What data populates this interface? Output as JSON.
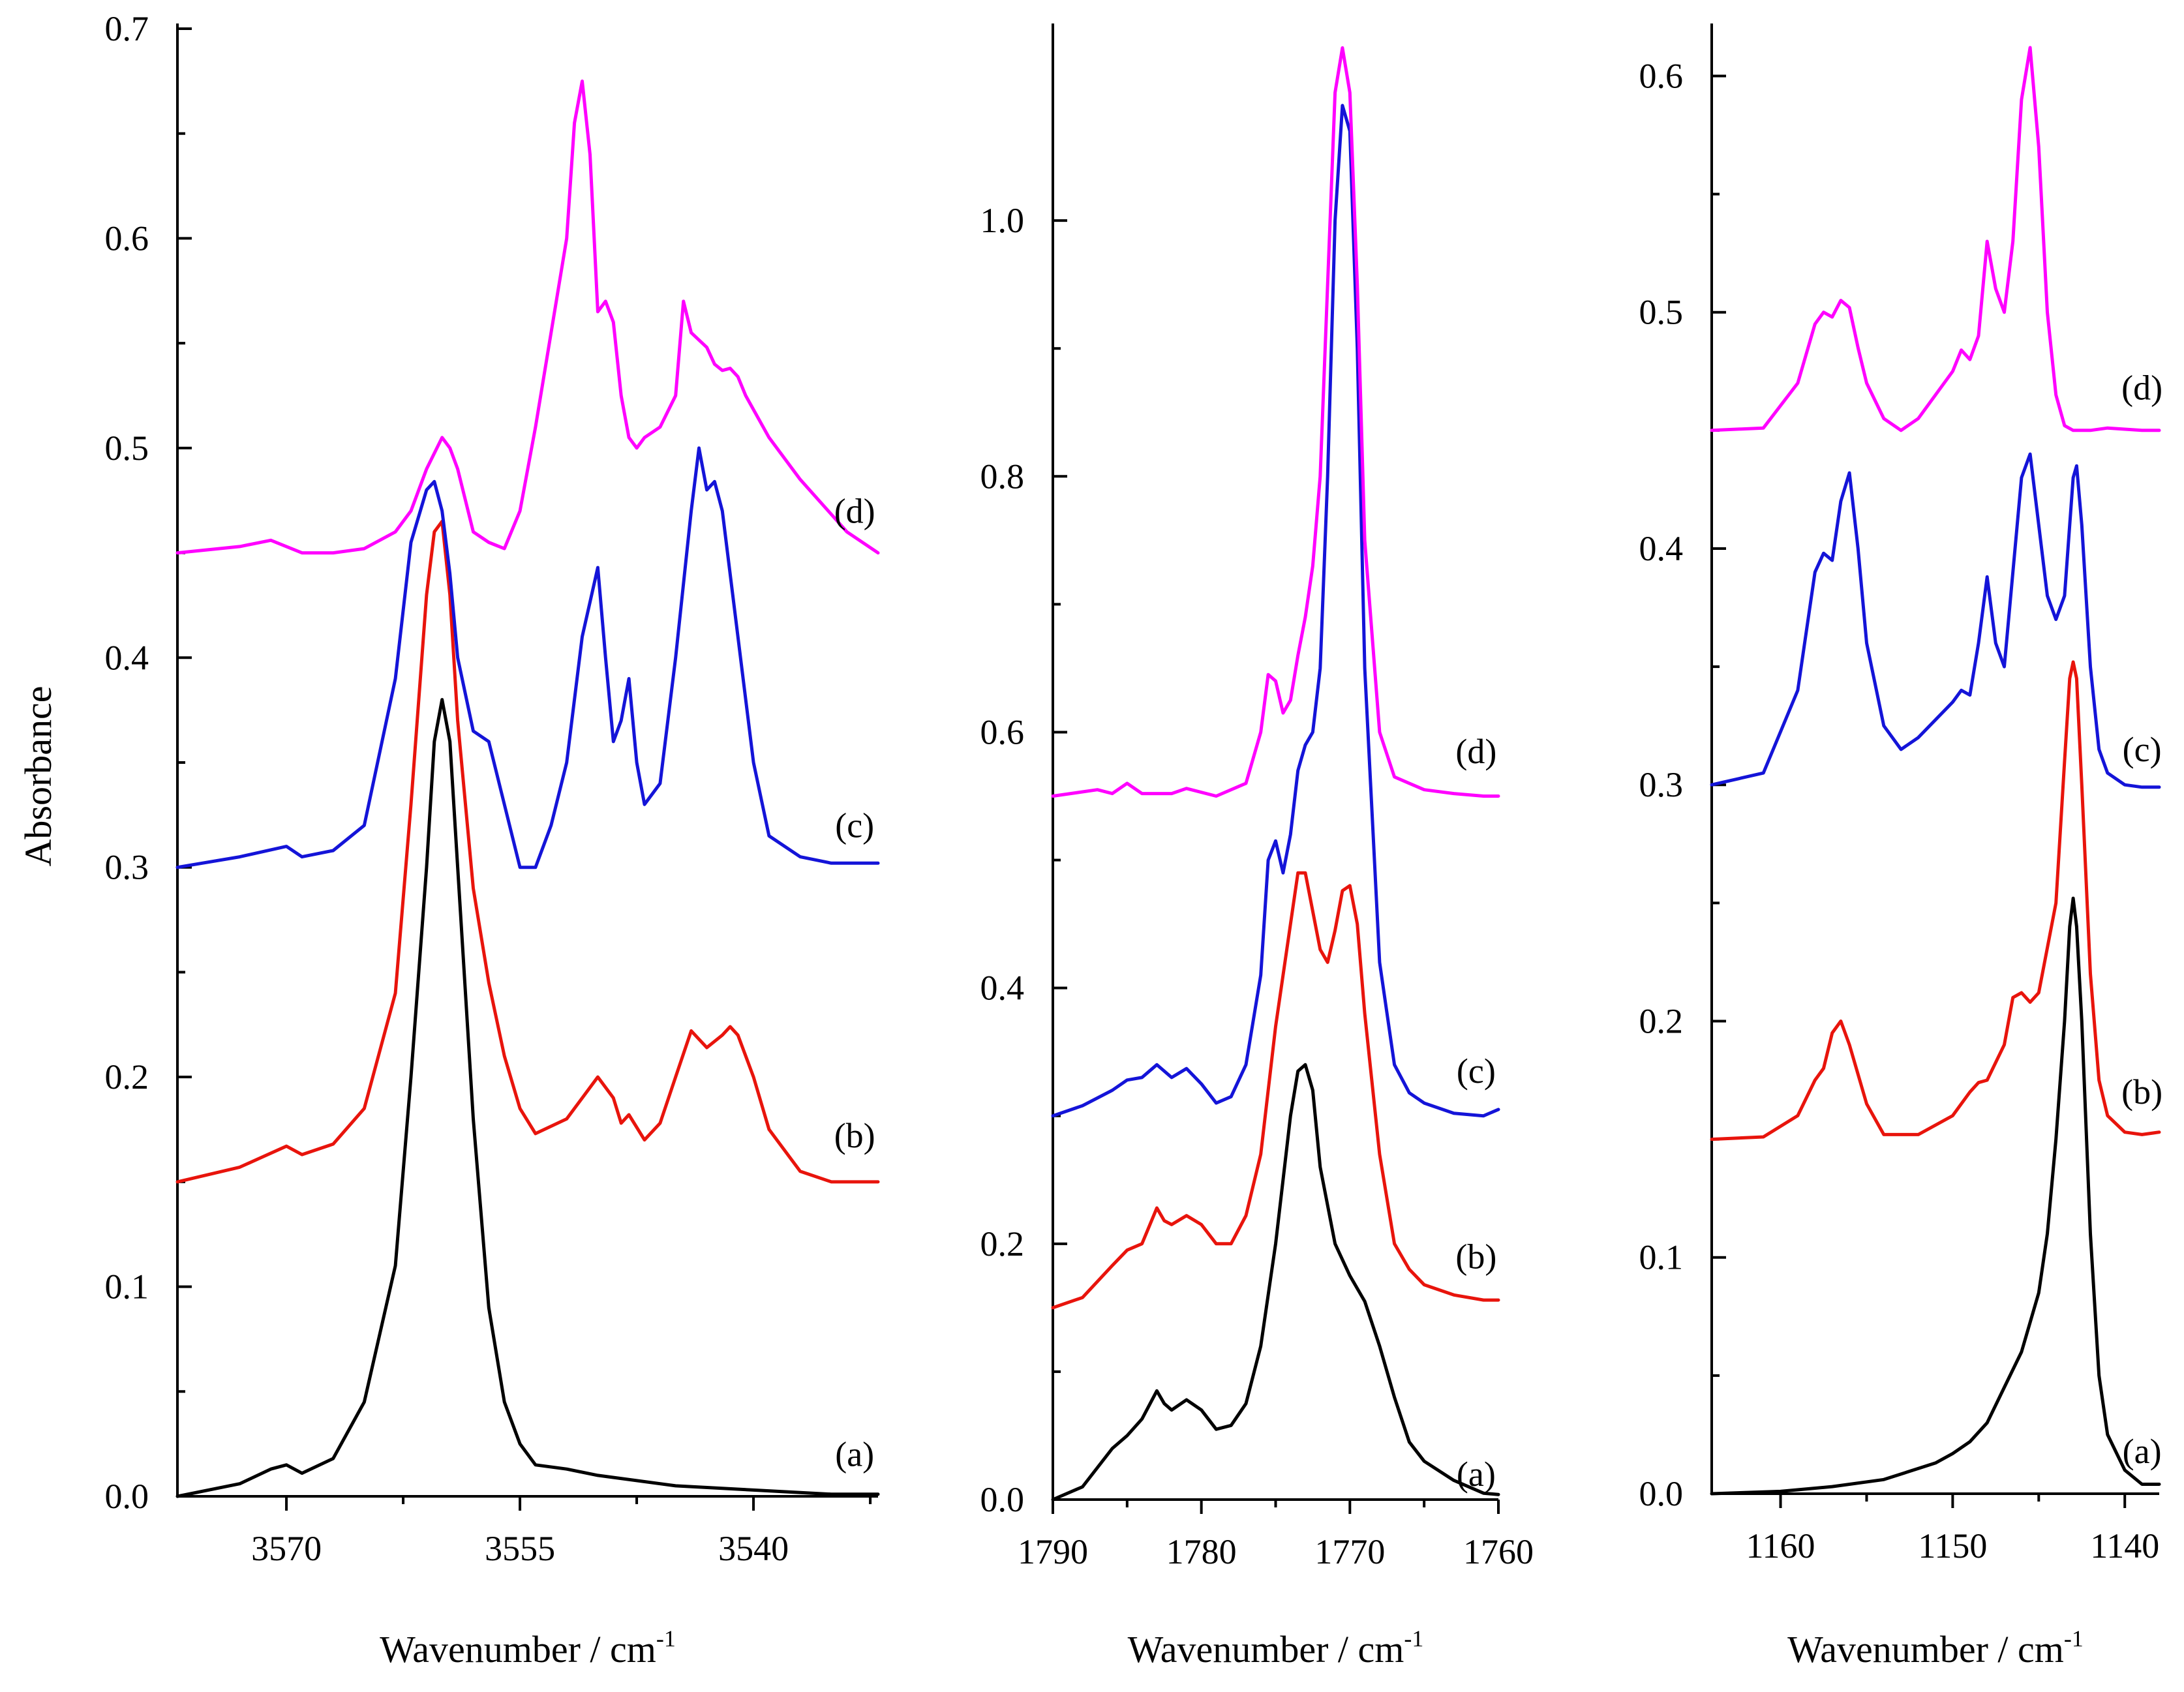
{
  "chart_data": [
    {
      "type": "line",
      "panel": "left",
      "title": "",
      "xlabel": "Wavenumber / cm",
      "xlabel_sup": "-1",
      "ylabel": "Absorbance",
      "xlim": [
        3577,
        3532
      ],
      "ylim": [
        0,
        0.7
      ],
      "x_ticks": [
        3570,
        3555,
        3540
      ],
      "x_tick_labels": [
        "3570",
        "3555",
        "3540"
      ],
      "y_ticks": [
        0,
        0.1,
        0.2,
        0.3,
        0.4,
        0.5,
        0.6,
        0.7
      ],
      "y_tick_labels": [
        "0.0",
        "0.1",
        "0.2",
        "0.3",
        "0.4",
        "0.5",
        "0.6",
        "0.7"
      ],
      "grid": false,
      "series": [
        {
          "name": "(a)",
          "label_x": 3533.5,
          "label_y": 0.02,
          "color": "#000000",
          "x": [
            3577,
            3573,
            3571,
            3570,
            3569,
            3567,
            3565,
            3563,
            3562,
            3561,
            3560.5,
            3560,
            3559.5,
            3559,
            3558,
            3557,
            3556,
            3555,
            3554,
            3552,
            3550,
            3545,
            3540,
            3535,
            3532
          ],
          "y": [
            0.0,
            0.006,
            0.013,
            0.015,
            0.011,
            0.018,
            0.045,
            0.11,
            0.2,
            0.3,
            0.36,
            0.38,
            0.36,
            0.3,
            0.18,
            0.09,
            0.045,
            0.025,
            0.015,
            0.013,
            0.01,
            0.005,
            0.003,
            0.001,
            0.001
          ]
        },
        {
          "name": "(b)",
          "label_x": 3533.5,
          "label_y": 0.172,
          "color": "#e8140c",
          "x": [
            3577,
            3573,
            3570,
            3569,
            3567,
            3565,
            3563,
            3562,
            3561,
            3560.5,
            3560,
            3559.5,
            3559,
            3558,
            3557,
            3556,
            3555,
            3554,
            3552,
            3550,
            3549,
            3548.5,
            3548,
            3547,
            3546,
            3545,
            3544,
            3543,
            3542,
            3541.5,
            3541,
            3540,
            3539,
            3537,
            3535,
            3532
          ],
          "y": [
            0.15,
            0.157,
            0.167,
            0.163,
            0.168,
            0.185,
            0.24,
            0.33,
            0.43,
            0.46,
            0.465,
            0.43,
            0.37,
            0.29,
            0.245,
            0.21,
            0.185,
            0.173,
            0.18,
            0.2,
            0.19,
            0.178,
            0.182,
            0.17,
            0.178,
            0.2,
            0.222,
            0.214,
            0.22,
            0.224,
            0.22,
            0.2,
            0.175,
            0.155,
            0.15,
            0.15
          ]
        },
        {
          "name": "(c)",
          "label_x": 3533.5,
          "label_y": 0.32,
          "color": "#1414d8",
          "x": [
            3577,
            3573,
            3570,
            3569,
            3567,
            3565,
            3563,
            3562,
            3561,
            3560.5,
            3560,
            3559.5,
            3559,
            3558,
            3557,
            3556,
            3555,
            3554,
            3553,
            3552,
            3551,
            3550,
            3549.5,
            3549,
            3548.5,
            3548,
            3547.5,
            3547,
            3546,
            3545,
            3544,
            3543.5,
            3543,
            3542.5,
            3542,
            3541,
            3540,
            3539,
            3537,
            3535,
            3532
          ],
          "y": [
            0.3,
            0.305,
            0.31,
            0.305,
            0.308,
            0.32,
            0.39,
            0.455,
            0.48,
            0.484,
            0.47,
            0.44,
            0.4,
            0.365,
            0.36,
            0.33,
            0.3,
            0.3,
            0.32,
            0.35,
            0.41,
            0.443,
            0.4,
            0.36,
            0.37,
            0.39,
            0.35,
            0.33,
            0.34,
            0.4,
            0.47,
            0.5,
            0.48,
            0.484,
            0.47,
            0.41,
            0.35,
            0.315,
            0.305,
            0.302,
            0.302
          ]
        },
        {
          "name": "(d)",
          "label_x": 3533.5,
          "label_y": 0.47,
          "color": "#ff00ff",
          "x": [
            3577,
            3573,
            3571,
            3569,
            3567,
            3565,
            3563,
            3562,
            3561,
            3560,
            3559.5,
            3559,
            3558,
            3557,
            3556,
            3555,
            3554,
            3552,
            3551.5,
            3551,
            3550.5,
            3550,
            3549.5,
            3549,
            3548.5,
            3548,
            3547.5,
            3547,
            3546,
            3545,
            3544.5,
            3544,
            3543,
            3542.5,
            3542,
            3541.5,
            3541,
            3540.5,
            3539,
            3537,
            3534,
            3532
          ],
          "y": [
            0.45,
            0.453,
            0.456,
            0.45,
            0.45,
            0.452,
            0.46,
            0.47,
            0.49,
            0.505,
            0.5,
            0.49,
            0.46,
            0.455,
            0.452,
            0.47,
            0.51,
            0.6,
            0.655,
            0.675,
            0.64,
            0.565,
            0.57,
            0.56,
            0.525,
            0.505,
            0.5,
            0.505,
            0.51,
            0.525,
            0.57,
            0.555,
            0.548,
            0.54,
            0.537,
            0.538,
            0.534,
            0.525,
            0.505,
            0.485,
            0.46,
            0.45
          ]
        }
      ]
    },
    {
      "type": "line",
      "panel": "middle",
      "title": "",
      "xlabel": "Wavenumber / cm",
      "xlabel_sup": "-1",
      "ylabel": "",
      "xlim": [
        1790,
        1760
      ],
      "ylim": [
        0,
        1.15
      ],
      "x_ticks": [
        1790,
        1780,
        1770,
        1760
      ],
      "x_tick_labels": [
        "1790",
        "1780",
        "1770",
        "1760"
      ],
      "y_ticks": [
        0,
        0.2,
        0.4,
        0.6,
        0.8,
        1.0
      ],
      "y_tick_labels": [
        "0.0",
        "0.2",
        "0.4",
        "0.6",
        "0.8",
        "1.0"
      ],
      "grid": false,
      "series": [
        {
          "name": "(a)",
          "label_x": 1761.5,
          "label_y": 0.02,
          "color": "#000000",
          "x": [
            1790,
            1788,
            1786,
            1785,
            1784,
            1783,
            1782.5,
            1782,
            1781,
            1780,
            1779,
            1778,
            1777,
            1776,
            1775,
            1774,
            1773.5,
            1773,
            1772.5,
            1772,
            1771,
            1770,
            1769,
            1768,
            1767,
            1766,
            1765,
            1763,
            1761,
            1760
          ],
          "y": [
            0.0,
            0.01,
            0.04,
            0.05,
            0.063,
            0.085,
            0.075,
            0.07,
            0.078,
            0.07,
            0.055,
            0.058,
            0.075,
            0.12,
            0.2,
            0.3,
            0.335,
            0.34,
            0.32,
            0.26,
            0.2,
            0.175,
            0.155,
            0.12,
            0.08,
            0.045,
            0.03,
            0.015,
            0.005,
            0.004
          ]
        },
        {
          "name": "(b)",
          "label_x": 1761.5,
          "label_y": 0.19,
          "color": "#e8140c",
          "x": [
            1790,
            1788,
            1786,
            1785,
            1784,
            1783,
            1782.5,
            1782,
            1781,
            1780,
            1779,
            1778,
            1777,
            1776,
            1775,
            1774,
            1773.5,
            1773,
            1772.5,
            1772,
            1771.5,
            1771,
            1770.5,
            1770,
            1769.5,
            1769,
            1768,
            1767,
            1766,
            1765,
            1763,
            1761,
            1760
          ],
          "y": [
            0.15,
            0.158,
            0.183,
            0.195,
            0.2,
            0.228,
            0.218,
            0.215,
            0.222,
            0.215,
            0.2,
            0.2,
            0.222,
            0.27,
            0.37,
            0.45,
            0.49,
            0.49,
            0.46,
            0.43,
            0.42,
            0.445,
            0.476,
            0.48,
            0.45,
            0.38,
            0.27,
            0.2,
            0.18,
            0.168,
            0.16,
            0.156,
            0.156
          ]
        },
        {
          "name": "(c)",
          "label_x": 1761.5,
          "label_y": 0.335,
          "color": "#1414d8",
          "x": [
            1790,
            1788,
            1786,
            1785,
            1784,
            1783,
            1782.5,
            1782,
            1781,
            1780,
            1779,
            1778,
            1777,
            1776,
            1775.5,
            1775,
            1774.5,
            1774,
            1773.5,
            1773,
            1772.5,
            1772,
            1771.5,
            1771,
            1770.5,
            1770,
            1769.5,
            1769,
            1768,
            1767,
            1766,
            1765,
            1763,
            1761,
            1760
          ],
          "y": [
            0.3,
            0.308,
            0.32,
            0.328,
            0.33,
            0.34,
            0.335,
            0.33,
            0.337,
            0.325,
            0.31,
            0.315,
            0.34,
            0.41,
            0.5,
            0.515,
            0.49,
            0.52,
            0.57,
            0.59,
            0.6,
            0.65,
            0.8,
            1.0,
            1.09,
            1.07,
            0.9,
            0.65,
            0.42,
            0.34,
            0.318,
            0.31,
            0.302,
            0.3,
            0.305
          ]
        },
        {
          "name": "(d)",
          "label_x": 1761.5,
          "label_y": 0.585,
          "color": "#ff00ff",
          "x": [
            1790,
            1787,
            1786,
            1785,
            1784,
            1782,
            1781,
            1779,
            1777,
            1776,
            1775.5,
            1775,
            1774.5,
            1774,
            1773.5,
            1773,
            1772.5,
            1772,
            1771.5,
            1771,
            1770.5,
            1770,
            1769.5,
            1769,
            1768,
            1767,
            1766,
            1765,
            1763,
            1761,
            1760
          ],
          "y": [
            0.55,
            0.555,
            0.552,
            0.56,
            0.552,
            0.552,
            0.556,
            0.55,
            0.56,
            0.6,
            0.645,
            0.64,
            0.615,
            0.625,
            0.66,
            0.69,
            0.73,
            0.8,
            0.95,
            1.1,
            1.135,
            1.1,
            0.95,
            0.75,
            0.6,
            0.565,
            0.56,
            0.555,
            0.552,
            0.55,
            0.55
          ]
        }
      ]
    },
    {
      "type": "line",
      "panel": "right",
      "title": "",
      "xlabel": "Wavenumber / cm",
      "xlabel_sup": "-1",
      "ylabel": "",
      "xlim": [
        1164,
        1138
      ],
      "ylim": [
        0,
        0.62
      ],
      "x_ticks": [
        1160,
        1150,
        1140
      ],
      "x_tick_labels": [
        "1160",
        "1150",
        "1140"
      ],
      "y_ticks": [
        0,
        0.1,
        0.2,
        0.3,
        0.4,
        0.5,
        0.6
      ],
      "y_tick_labels": [
        "0.0",
        "0.1",
        "0.2",
        "0.3",
        "0.4",
        "0.5",
        "0.6"
      ],
      "grid": false,
      "series": [
        {
          "name": "(a)",
          "label_x": 1139,
          "label_y": 0.018,
          "color": "#000000",
          "x": [
            1164,
            1160,
            1157,
            1154,
            1151,
            1150,
            1149,
            1148,
            1147,
            1146,
            1145,
            1144.5,
            1144,
            1143.5,
            1143.2,
            1143,
            1142.8,
            1142.5,
            1142,
            1141.5,
            1141,
            1140,
            1139,
            1138
          ],
          "y": [
            0.0,
            0.001,
            0.003,
            0.006,
            0.013,
            0.017,
            0.022,
            0.03,
            0.045,
            0.06,
            0.085,
            0.11,
            0.15,
            0.2,
            0.24,
            0.252,
            0.24,
            0.2,
            0.11,
            0.05,
            0.025,
            0.01,
            0.004,
            0.004
          ]
        },
        {
          "name": "(b)",
          "label_x": 1139,
          "label_y": 0.17,
          "color": "#e8140c",
          "x": [
            1164,
            1161,
            1159,
            1158,
            1157.5,
            1157,
            1156.5,
            1156,
            1155,
            1154,
            1152,
            1150,
            1149,
            1148.5,
            1148,
            1147,
            1146.5,
            1146,
            1145.5,
            1145,
            1144,
            1143.5,
            1143.2,
            1143,
            1142.8,
            1142.5,
            1142,
            1141.5,
            1141,
            1140,
            1139,
            1138
          ],
          "y": [
            0.15,
            0.151,
            0.16,
            0.175,
            0.18,
            0.195,
            0.2,
            0.19,
            0.165,
            0.152,
            0.152,
            0.16,
            0.17,
            0.174,
            0.175,
            0.19,
            0.21,
            0.212,
            0.208,
            0.212,
            0.25,
            0.31,
            0.345,
            0.352,
            0.345,
            0.3,
            0.22,
            0.175,
            0.16,
            0.153,
            0.152,
            0.153
          ]
        },
        {
          "name": "(c)",
          "label_x": 1139,
          "label_y": 0.315,
          "color": "#1414d8",
          "x": [
            1164,
            1161,
            1159,
            1158,
            1157.5,
            1157,
            1156.5,
            1156,
            1155.5,
            1155,
            1154,
            1153,
            1152,
            1150,
            1149.5,
            1149,
            1148.5,
            1148,
            1147.5,
            1147,
            1146.5,
            1146,
            1145.5,
            1145,
            1144.5,
            1144,
            1143.5,
            1143.2,
            1143,
            1142.8,
            1142.5,
            1142,
            1141.5,
            1141,
            1140,
            1139,
            1138
          ],
          "y": [
            0.3,
            0.305,
            0.34,
            0.39,
            0.398,
            0.395,
            0.42,
            0.432,
            0.4,
            0.36,
            0.325,
            0.315,
            0.32,
            0.335,
            0.34,
            0.338,
            0.36,
            0.388,
            0.36,
            0.35,
            0.39,
            0.43,
            0.44,
            0.41,
            0.38,
            0.37,
            0.38,
            0.41,
            0.43,
            0.435,
            0.41,
            0.35,
            0.315,
            0.305,
            0.3,
            0.299,
            0.299
          ]
        },
        {
          "name": "(d)",
          "label_x": 1139,
          "label_y": 0.468,
          "color": "#ff00ff",
          "x": [
            1164,
            1161,
            1159,
            1158,
            1157.5,
            1157,
            1156.5,
            1156,
            1155.5,
            1155,
            1154,
            1153,
            1152,
            1150,
            1149.5,
            1149,
            1148.5,
            1148,
            1147.5,
            1147,
            1146.5,
            1146,
            1145.5,
            1145,
            1144.5,
            1144,
            1143.5,
            1143,
            1142,
            1141,
            1139,
            1138
          ],
          "y": [
            0.45,
            0.451,
            0.47,
            0.495,
            0.5,
            0.498,
            0.505,
            0.502,
            0.485,
            0.47,
            0.455,
            0.45,
            0.455,
            0.475,
            0.484,
            0.48,
            0.49,
            0.53,
            0.51,
            0.5,
            0.53,
            0.59,
            0.612,
            0.57,
            0.5,
            0.465,
            0.452,
            0.45,
            0.45,
            0.451,
            0.45,
            0.45
          ]
        }
      ]
    }
  ]
}
